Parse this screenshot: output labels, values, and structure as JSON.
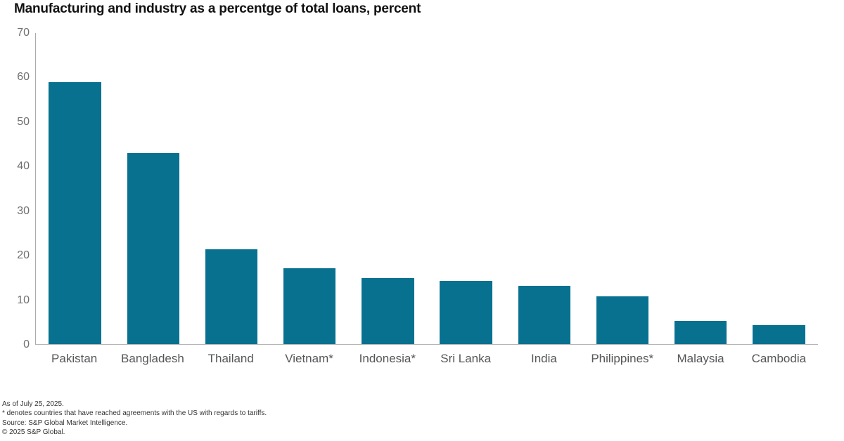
{
  "title": "Manufacturing and industry as a percentge of total loans, percent",
  "footnotes": {
    "as_of": "As of July 25, 2025.",
    "asterisk_note": "* denotes countries that have reached agreements with the US with regards to tariffs.",
    "source": "Source: S&P Global Market Intelligence.",
    "copyright": "© 2025 S&P Global."
  },
  "colors": {
    "bar": "#087190",
    "axis": "#ababab",
    "tick_label": "#6f6f6f",
    "category_label": "#565659",
    "title_text": "#111111",
    "footnote_text": "#333333",
    "background": "#ffffff"
  },
  "chart_data": {
    "type": "bar",
    "title": "Manufacturing and industry as a percentge of total loans, percent",
    "categories": [
      "Pakistan",
      "Bangladesh",
      "Thailand",
      "Vietnam*",
      "Indonesia*",
      "Sri Lanka",
      "India",
      "Philippines*",
      "Malaysia",
      "Cambodia"
    ],
    "values": [
      59,
      43,
      21.3,
      17,
      14.8,
      14.3,
      13.1,
      10.8,
      5.2,
      4.2
    ],
    "xlabel": "",
    "ylabel": "",
    "ylim": [
      0,
      70
    ],
    "yticks": [
      0,
      10,
      20,
      30,
      40,
      50,
      60,
      70
    ],
    "grid": false,
    "legend": false,
    "bar_width_fraction": 0.67
  }
}
